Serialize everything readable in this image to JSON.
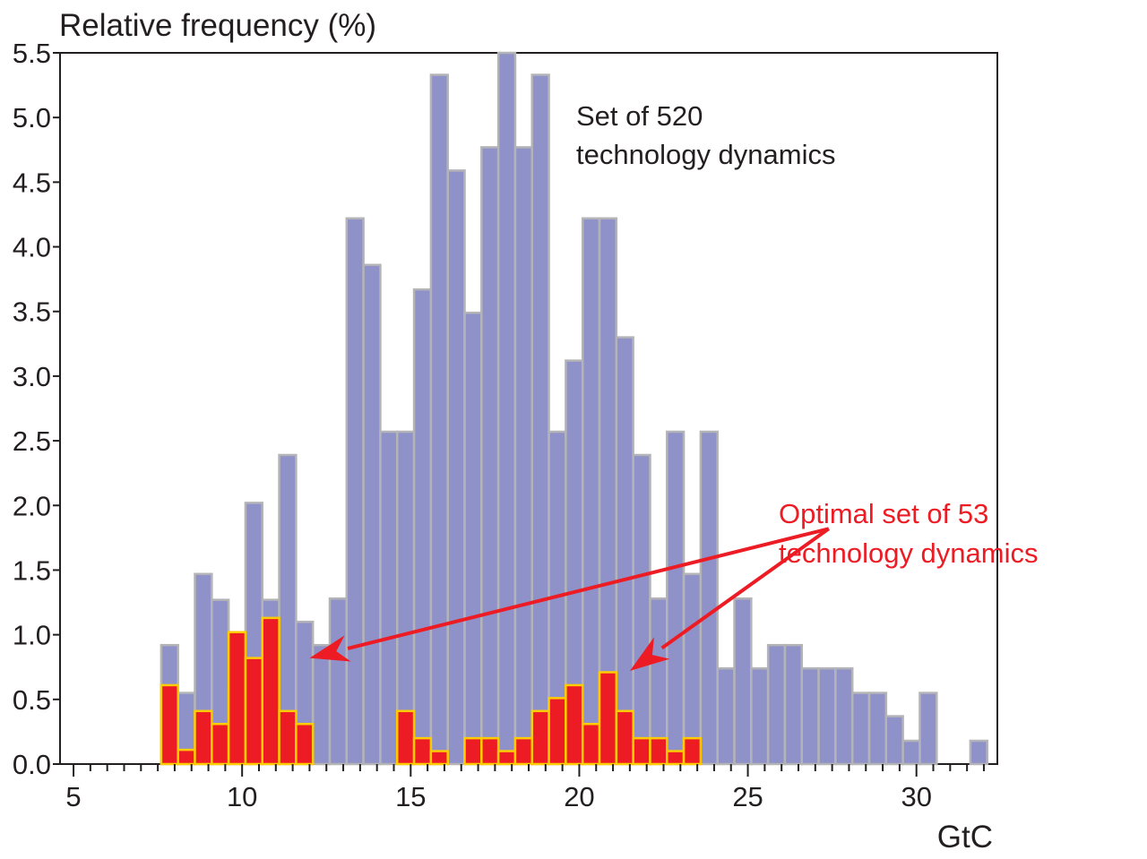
{
  "chart_data": {
    "type": "bar",
    "ylabel": "Relative frequency (%)",
    "xlabel": "GtC",
    "xlim": [
      4.6,
      32.4
    ],
    "ylim": [
      0,
      5.5
    ],
    "bin_width": 0.5,
    "x_ticks": [
      5,
      10,
      15,
      20,
      25,
      30
    ],
    "x_minor_step": 0.5,
    "y_ticks": [
      "0.0",
      "0.5",
      "1.0",
      "1.5",
      "2.0",
      "2.5",
      "3.0",
      "3.5",
      "4.0",
      "4.5",
      "5.0",
      "5.5"
    ],
    "grid": false,
    "series": [
      {
        "name": "Set of 520 technology dynamics",
        "color": "#8f92c8",
        "edge_color": "#b4b4b8",
        "bins": [
          {
            "x": 7.6,
            "y": 0.92
          },
          {
            "x": 8.1,
            "y": 0.55
          },
          {
            "x": 8.6,
            "y": 1.47
          },
          {
            "x": 9.1,
            "y": 1.27
          },
          {
            "x": 9.6,
            "y": 0.55
          },
          {
            "x": 10.1,
            "y": 2.02
          },
          {
            "x": 10.6,
            "y": 1.27
          },
          {
            "x": 11.1,
            "y": 2.39
          },
          {
            "x": 11.6,
            "y": 1.1
          },
          {
            "x": 12.1,
            "y": 0.92
          },
          {
            "x": 12.6,
            "y": 1.28
          },
          {
            "x": 13.1,
            "y": 4.22
          },
          {
            "x": 13.6,
            "y": 3.86
          },
          {
            "x": 14.1,
            "y": 2.57
          },
          {
            "x": 14.6,
            "y": 2.57
          },
          {
            "x": 15.1,
            "y": 3.67
          },
          {
            "x": 15.6,
            "y": 5.33
          },
          {
            "x": 16.1,
            "y": 4.59
          },
          {
            "x": 16.6,
            "y": 3.49
          },
          {
            "x": 17.1,
            "y": 4.77
          },
          {
            "x": 17.6,
            "y": 5.5
          },
          {
            "x": 18.1,
            "y": 4.77
          },
          {
            "x": 18.6,
            "y": 5.33
          },
          {
            "x": 19.1,
            "y": 2.57
          },
          {
            "x": 19.6,
            "y": 3.12
          },
          {
            "x": 20.1,
            "y": 4.22
          },
          {
            "x": 20.6,
            "y": 4.22
          },
          {
            "x": 21.1,
            "y": 3.3
          },
          {
            "x": 21.6,
            "y": 2.39
          },
          {
            "x": 22.1,
            "y": 1.28
          },
          {
            "x": 22.6,
            "y": 2.57
          },
          {
            "x": 23.1,
            "y": 1.47
          },
          {
            "x": 23.6,
            "y": 2.57
          },
          {
            "x": 24.1,
            "y": 0.74
          },
          {
            "x": 24.6,
            "y": 1.28
          },
          {
            "x": 25.1,
            "y": 0.74
          },
          {
            "x": 25.6,
            "y": 0.92
          },
          {
            "x": 26.1,
            "y": 0.92
          },
          {
            "x": 26.6,
            "y": 0.74
          },
          {
            "x": 27.1,
            "y": 0.74
          },
          {
            "x": 27.6,
            "y": 0.74
          },
          {
            "x": 28.1,
            "y": 0.55
          },
          {
            "x": 28.6,
            "y": 0.55
          },
          {
            "x": 29.1,
            "y": 0.37
          },
          {
            "x": 29.6,
            "y": 0.18
          },
          {
            "x": 30.1,
            "y": 0.55
          },
          {
            "x": 31.6,
            "y": 0.18
          }
        ]
      },
      {
        "name": "Optimal set of 53 technology dynamics",
        "color": "#ed1c24",
        "edge_color": "#ffcc00",
        "bins": [
          {
            "x": 7.6,
            "y": 0.61
          },
          {
            "x": 8.1,
            "y": 0.11
          },
          {
            "x": 8.6,
            "y": 0.41
          },
          {
            "x": 9.1,
            "y": 0.31
          },
          {
            "x": 9.6,
            "y": 1.02
          },
          {
            "x": 10.1,
            "y": 0.82
          },
          {
            "x": 10.6,
            "y": 1.13
          },
          {
            "x": 11.1,
            "y": 0.41
          },
          {
            "x": 11.6,
            "y": 0.31
          },
          {
            "x": 14.6,
            "y": 0.41
          },
          {
            "x": 15.1,
            "y": 0.2
          },
          {
            "x": 15.6,
            "y": 0.1
          },
          {
            "x": 16.6,
            "y": 0.2
          },
          {
            "x": 17.1,
            "y": 0.2
          },
          {
            "x": 17.6,
            "y": 0.1
          },
          {
            "x": 18.1,
            "y": 0.2
          },
          {
            "x": 18.6,
            "y": 0.41
          },
          {
            "x": 19.1,
            "y": 0.51
          },
          {
            "x": 19.6,
            "y": 0.61
          },
          {
            "x": 20.1,
            "y": 0.31
          },
          {
            "x": 20.6,
            "y": 0.71
          },
          {
            "x": 21.1,
            "y": 0.41
          },
          {
            "x": 21.6,
            "y": 0.2
          },
          {
            "x": 22.1,
            "y": 0.2
          },
          {
            "x": 22.6,
            "y": 0.1
          },
          {
            "x": 23.1,
            "y": 0.2
          }
        ]
      }
    ],
    "annotations": {
      "gray_label_line1": "Set of 520",
      "gray_label_line2": "technology dynamics",
      "red_label_line1": "Optimal set of 53",
      "red_label_line2": "technology dynamics",
      "arrow_color": "#ed1c24",
      "arrow_source": {
        "x": 27.4,
        "y": 1.82
      },
      "arrow_targets": [
        {
          "x": 12.0,
          "y": 0.82
        },
        {
          "x": 21.5,
          "y": 0.72
        }
      ]
    }
  }
}
